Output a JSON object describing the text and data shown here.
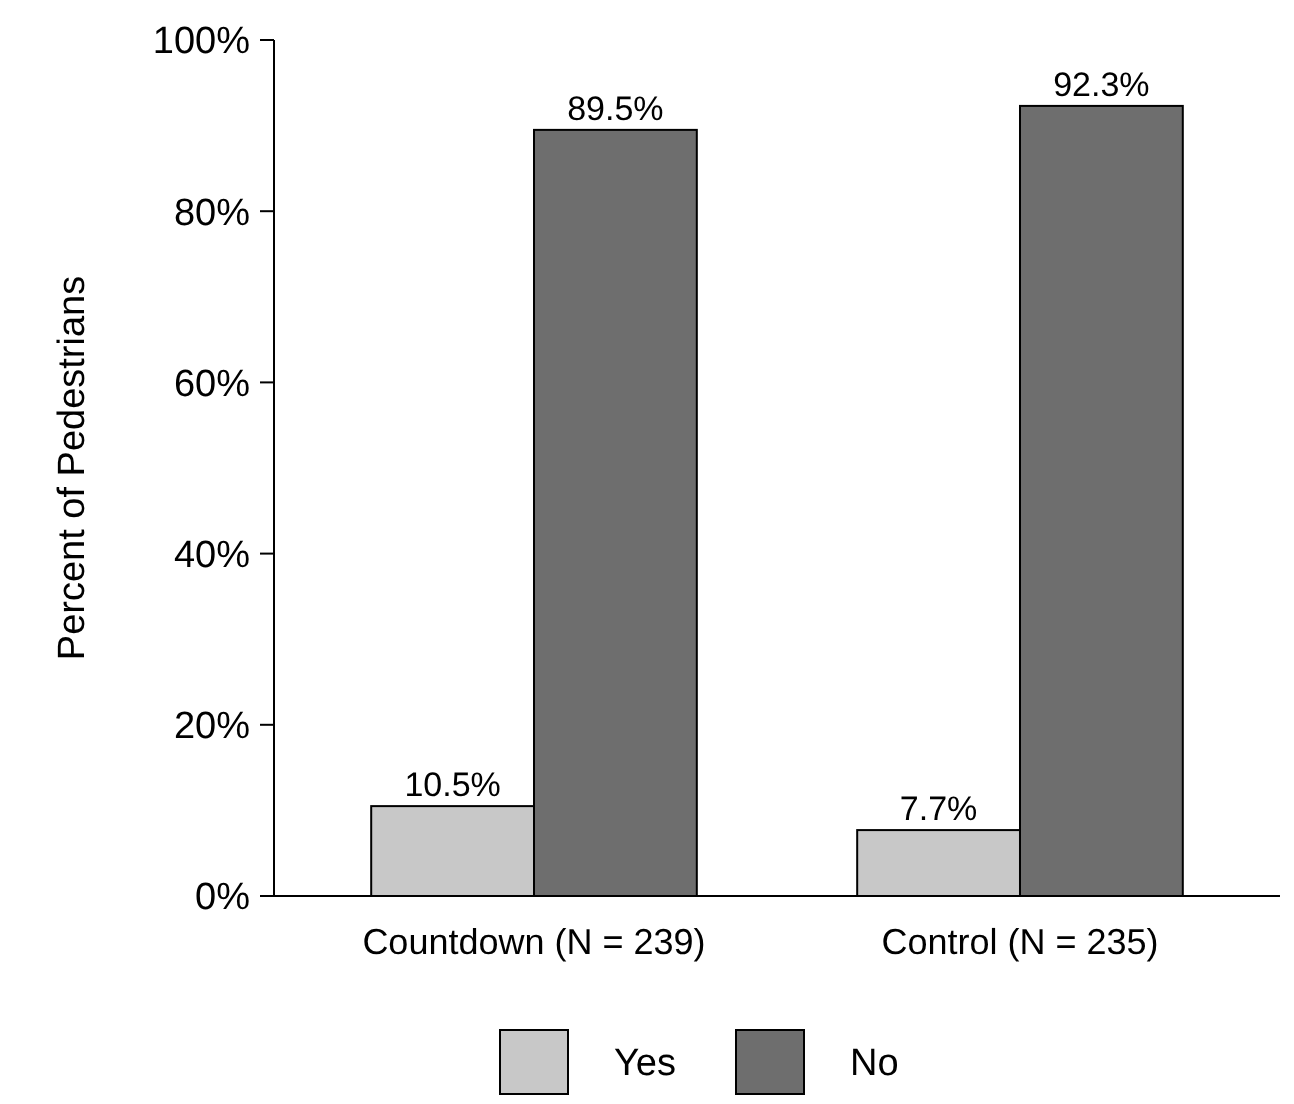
{
  "chart_data": {
    "type": "bar",
    "ylabel": "Percent of Pedestrians",
    "categories": [
      "Countdown (N = 239)",
      "Control (N = 235)"
    ],
    "series": [
      {
        "name": "Yes",
        "color": "#c8c8c8",
        "values": [
          10.5,
          7.7
        ],
        "value_labels": [
          "10.5%",
          "7.7%"
        ]
      },
      {
        "name": "No",
        "color": "#6e6e6e",
        "values": [
          89.5,
          92.3
        ],
        "value_labels": [
          "89.5%",
          "92.3%"
        ]
      }
    ],
    "ylim": [
      0,
      100
    ],
    "yticks": [
      {
        "value": 0,
        "label": "0%"
      },
      {
        "value": 20,
        "label": "20%"
      },
      {
        "value": 40,
        "label": "40%"
      },
      {
        "value": 60,
        "label": "60%"
      },
      {
        "value": 80,
        "label": "80%"
      },
      {
        "value": 100,
        "label": "100%"
      }
    ],
    "grid": false,
    "legend": "bottom"
  }
}
